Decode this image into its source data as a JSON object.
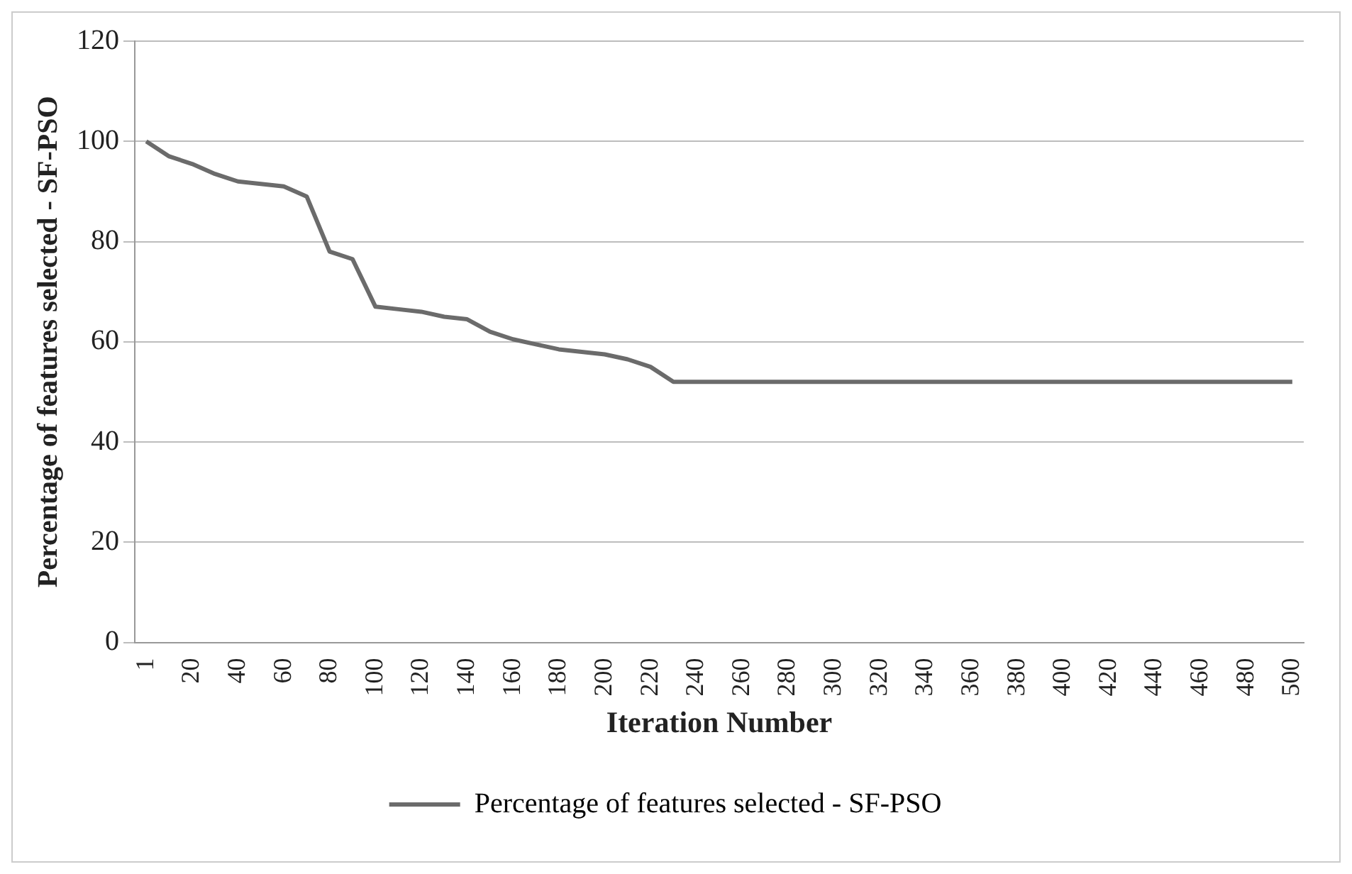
{
  "chart_data": {
    "type": "line",
    "xlabel": "Iteration Number",
    "ylabel": "Percentage of features selected - SF-PSO",
    "categories": [
      "1",
      null,
      "20",
      null,
      "40",
      null,
      "60",
      null,
      "80",
      null,
      "100",
      null,
      "120",
      null,
      "140",
      null,
      "160",
      null,
      "180",
      null,
      "200",
      null,
      "220",
      null,
      "240",
      null,
      "260",
      null,
      "280",
      null,
      "300",
      null,
      "320",
      null,
      "340",
      null,
      "360",
      null,
      "380",
      null,
      "400",
      null,
      "420",
      null,
      "440",
      null,
      "460",
      null,
      "480",
      null,
      "500"
    ],
    "series": [
      {
        "name": "Percentage of features selected - SF-PSO",
        "color": "#6b6b6b",
        "values": [
          100,
          97,
          95.5,
          93.5,
          92,
          91.5,
          91,
          89,
          78,
          76.5,
          67,
          66.5,
          66,
          65,
          64.5,
          62,
          60.5,
          59.5,
          58.5,
          58,
          57.5,
          56.5,
          55,
          52,
          52,
          52,
          52,
          52,
          52,
          52,
          52,
          52,
          52,
          52,
          52,
          52,
          52,
          52,
          52,
          52,
          52,
          52,
          52,
          52,
          52,
          52,
          52,
          52,
          52,
          52,
          52
        ]
      }
    ],
    "ylim": [
      0,
      120
    ],
    "yticks": [
      0,
      20,
      40,
      60,
      80,
      100,
      120
    ],
    "grid": "y",
    "legend": "bottom",
    "marker": "none",
    "line_style": "solid"
  }
}
